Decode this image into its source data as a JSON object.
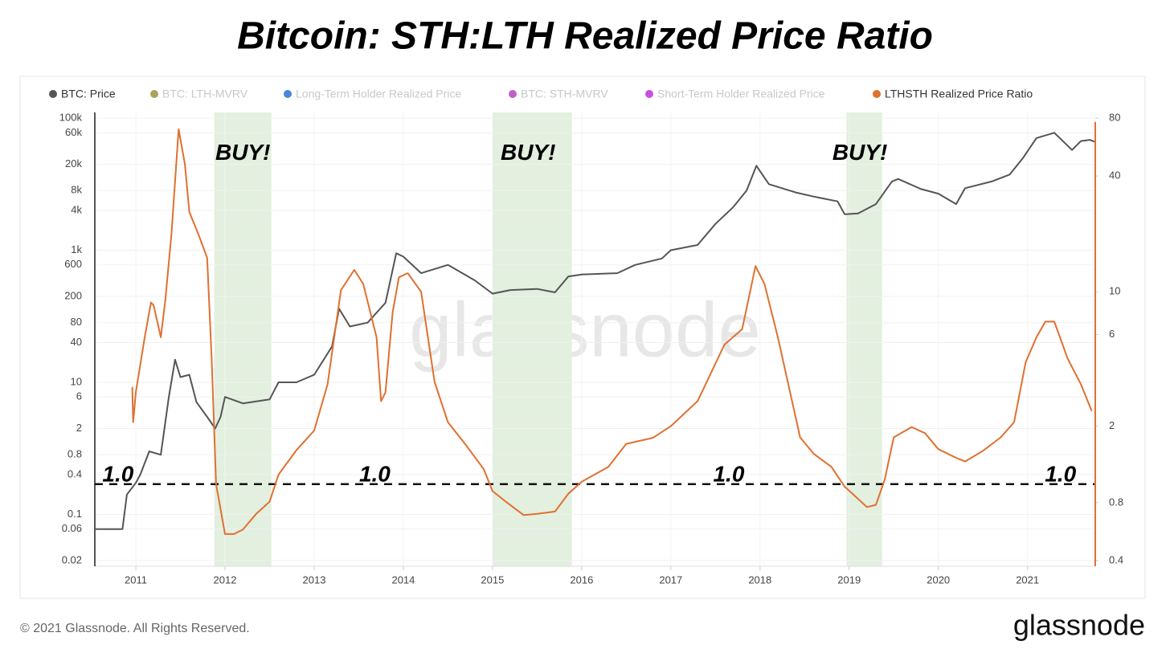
{
  "chart_data": {
    "type": "line",
    "title": "Bitcoin: STH:LTH Realized Price Ratio",
    "watermark": "glassnode",
    "log_y": true,
    "log_y2": true,
    "grid": true,
    "legend": "top-left",
    "xlim": [
      2010.54,
      2021.76
    ],
    "xticks": [
      2011,
      2012,
      2013,
      2014,
      2015,
      2016,
      2017,
      2018,
      2019,
      2020,
      2021
    ],
    "ylim": [
      0.0164,
      122000
    ],
    "yticks": [
      {
        "value": 100000,
        "label": "100k"
      },
      {
        "value": 60000,
        "label": "60k"
      },
      {
        "value": 20000,
        "label": "20k"
      },
      {
        "value": 8000,
        "label": "8k"
      },
      {
        "value": 4000,
        "label": "4k"
      },
      {
        "value": 1000,
        "label": "1k"
      },
      600,
      200,
      80,
      40,
      10,
      6,
      2,
      0.8,
      0.4,
      0.1,
      0.06,
      0.02
    ],
    "y2lim": [
      0.374,
      85.6
    ],
    "y2ticks": [
      80,
      40,
      10,
      6,
      2,
      0.8,
      0.4
    ],
    "series": [
      {
        "name": "BTC: Price",
        "color": "#555555",
        "visible": true,
        "axis": "y",
        "x": [
          2010.54,
          2010.7,
          2010.85,
          2010.9,
          2011.0,
          2011.05,
          2011.15,
          2011.28,
          2011.37,
          2011.44,
          2011.5,
          2011.6,
          2011.68,
          2011.8,
          2011.89,
          2011.95,
          2012.0,
          2012.2,
          2012.5,
          2012.6,
          2012.8,
          2013.0,
          2013.2,
          2013.28,
          2013.4,
          2013.6,
          2013.8,
          2013.92,
          2014.0,
          2014.2,
          2014.5,
          2014.8,
          2015.0,
          2015.2,
          2015.5,
          2015.7,
          2015.85,
          2016.0,
          2016.4,
          2016.6,
          2016.9,
          2017.0,
          2017.3,
          2017.5,
          2017.7,
          2017.85,
          2017.96,
          2018.1,
          2018.4,
          2018.6,
          2018.87,
          2018.95,
          2019.1,
          2019.3,
          2019.48,
          2019.55,
          2019.8,
          2020.0,
          2020.2,
          2020.3,
          2020.6,
          2020.8,
          2020.95,
          2021.1,
          2021.3,
          2021.5,
          2021.6,
          2021.7,
          2021.75
        ],
        "values": [
          0.06,
          0.06,
          0.06,
          0.2,
          0.3,
          0.4,
          0.9,
          0.8,
          6,
          22,
          12,
          13,
          5,
          3,
          2,
          3,
          6,
          4.8,
          5.5,
          10,
          10,
          13,
          35,
          130,
          70,
          80,
          160,
          900,
          800,
          450,
          600,
          350,
          220,
          250,
          260,
          230,
          400,
          430,
          450,
          600,
          750,
          1000,
          1200,
          2500,
          4500,
          8000,
          19000,
          10000,
          7500,
          6500,
          5500,
          3500,
          3600,
          5000,
          11000,
          12000,
          8500,
          7200,
          5000,
          8700,
          11000,
          14000,
          25000,
          50000,
          60000,
          33000,
          45000,
          47000,
          44000
        ]
      },
      {
        "name": "BTC: LTH-MVRV",
        "color": "#a9a45a",
        "visible": false
      },
      {
        "name": "Long-Term Holder Realized Price",
        "color": "#4a86d8",
        "visible": false
      },
      {
        "name": "BTC: STH-MVRV",
        "color": "#c060c8",
        "visible": false
      },
      {
        "name": "Short-Term Holder Realized Price",
        "color": "#c84ee0",
        "visible": false
      },
      {
        "name": "LTHSTH Realized Price Ratio",
        "color": "#e07030",
        "visible": true,
        "axis": "y2",
        "x": [
          2010.96,
          2010.97,
          2011.0,
          2011.1,
          2011.17,
          2011.2,
          2011.28,
          2011.33,
          2011.4,
          2011.48,
          2011.55,
          2011.6,
          2011.7,
          2011.8,
          2011.85,
          2011.9,
          2012.0,
          2012.1,
          2012.2,
          2012.35,
          2012.5,
          2012.6,
          2012.8,
          2013.0,
          2013.15,
          2013.3,
          2013.45,
          2013.55,
          2013.7,
          2013.75,
          2013.8,
          2013.88,
          2013.95,
          2014.05,
          2014.2,
          2014.35,
          2014.5,
          2014.7,
          2014.9,
          2015.0,
          2015.15,
          2015.35,
          2015.5,
          2015.7,
          2015.85,
          2016.0,
          2016.3,
          2016.5,
          2016.8,
          2017.0,
          2017.3,
          2017.6,
          2017.8,
          2017.95,
          2018.05,
          2018.2,
          2018.45,
          2018.6,
          2018.8,
          2018.95,
          2019.2,
          2019.3,
          2019.4,
          2019.5,
          2019.7,
          2019.85,
          2020.0,
          2020.2,
          2020.3,
          2020.5,
          2020.7,
          2020.85,
          2020.98,
          2021.1,
          2021.2,
          2021.3,
          2021.45,
          2021.6,
          2021.72
        ],
        "values": [
          3.2,
          2.1,
          3,
          5.8,
          8.8,
          8.5,
          5.8,
          9,
          20,
          70,
          46,
          26,
          20,
          15,
          4.5,
          1.0,
          0.55,
          0.55,
          0.58,
          0.7,
          0.81,
          1.12,
          1.5,
          1.9,
          3.3,
          10.2,
          13,
          11,
          5.8,
          2.7,
          3.0,
          7.8,
          11.9,
          12.5,
          10,
          3.4,
          2.1,
          1.6,
          1.2,
          0.92,
          0.81,
          0.69,
          0.7,
          0.72,
          0.89,
          1.03,
          1.23,
          1.62,
          1.74,
          2.0,
          2.7,
          5.3,
          6.4,
          13.6,
          11.0,
          5.8,
          1.75,
          1.44,
          1.23,
          0.97,
          0.76,
          0.78,
          1.06,
          1.75,
          1.98,
          1.84,
          1.52,
          1.37,
          1.31,
          1.49,
          1.75,
          2.1,
          4.3,
          5.8,
          7.0,
          7.0,
          4.5,
          3.3,
          2.4
        ]
      }
    ],
    "shaded_regions": [
      [
        2011.88,
        2012.52
      ],
      [
        2015.0,
        2015.89
      ],
      [
        2018.97,
        2019.37
      ]
    ],
    "shade_color": "#e3efdf",
    "hline": {
      "value": 1,
      "axis": "y2",
      "color": "#111111"
    },
    "annotations": [
      {
        "text": "BUY!",
        "x": 2012.2,
        "y": 52
      },
      {
        "text": "BUY!",
        "x": 2015.4,
        "y": 52
      },
      {
        "text": "BUY!",
        "x": 2019.12,
        "y": 52
      },
      {
        "text": "1.0",
        "x": 2010.8,
        "y": 1.11
      },
      {
        "text": "1.0",
        "x": 2013.68,
        "y": 1.11
      },
      {
        "text": "1.0",
        "x": 2017.65,
        "y": 1.11
      },
      {
        "text": "1.0",
        "x": 2021.37,
        "y": 1.11
      }
    ]
  },
  "footer": {
    "copyright": "© 2021 Glassnode. All Rights Reserved.",
    "logo": "glassnode"
  }
}
